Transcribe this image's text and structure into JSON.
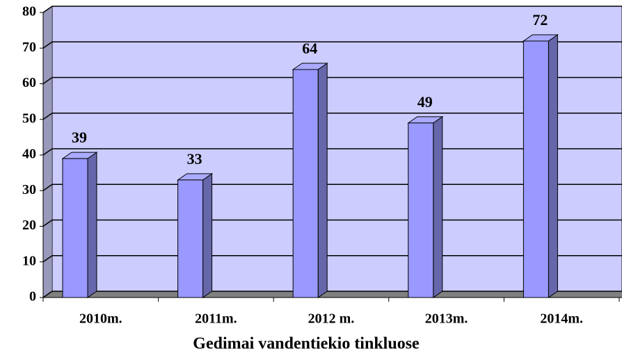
{
  "chart_data": {
    "type": "bar",
    "title": "Gedimai vandentiekio tinkluose",
    "categories": [
      "2010m.",
      "2011m.",
      "2012 m.",
      "2013m.",
      "2014m."
    ],
    "values": [
      39,
      33,
      64,
      49,
      72
    ],
    "color": "#9999ff",
    "wall_color": "#ccccff",
    "floor_color": "#808080",
    "ylim": [
      0,
      80
    ],
    "yticks": [
      0,
      10,
      20,
      30,
      40,
      50,
      60,
      70,
      80
    ],
    "grid": true
  }
}
